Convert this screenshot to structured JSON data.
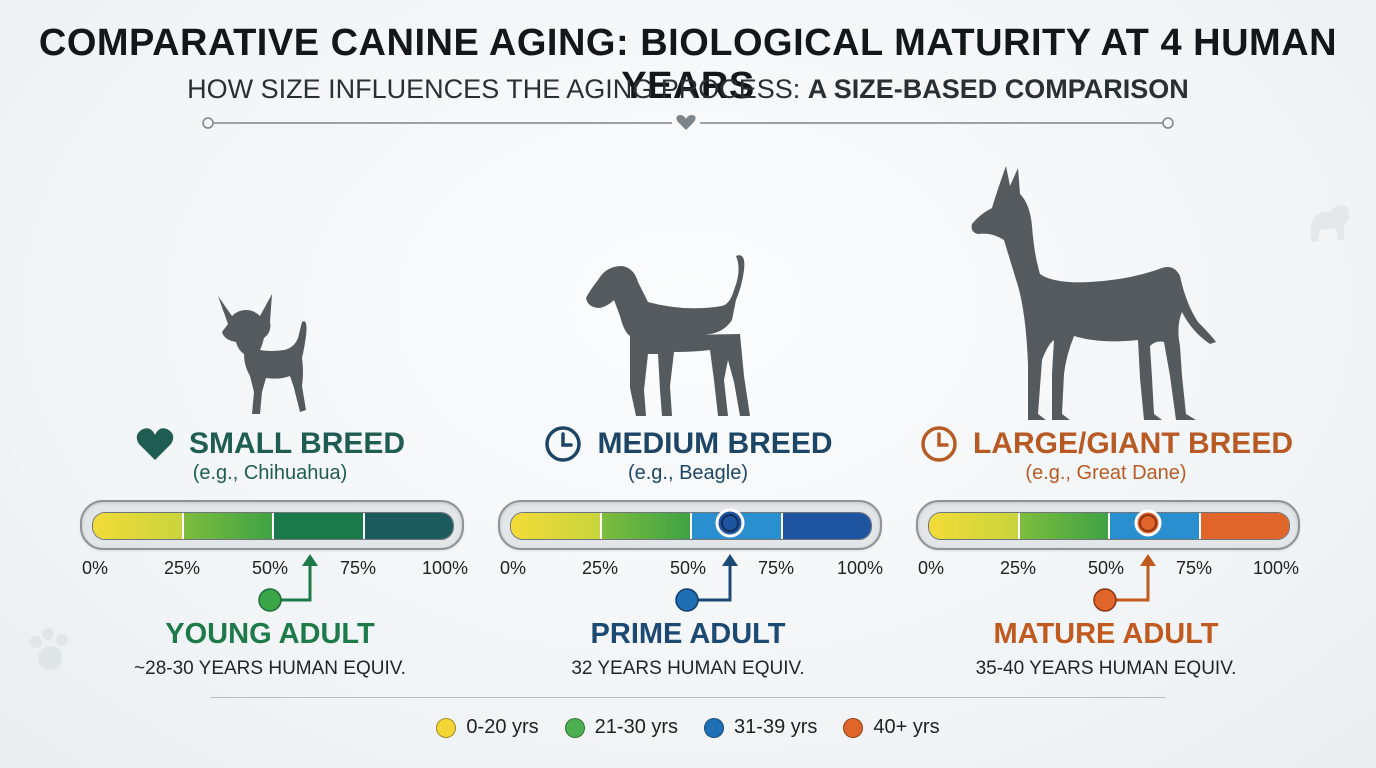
{
  "header": {
    "title": "COMPARATIVE CANINE AGING: BIOLOGICAL MATURITY AT 4 HUMAN YEARS",
    "subtitle_plain": "HOW SIZE INFLUENCES THE AGING PROCESS: ",
    "subtitle_bold": "A SIZE-BASED COMPARISON"
  },
  "tick_labels": [
    "0%",
    "25%",
    "50%",
    "75%",
    "100%"
  ],
  "breeds": [
    {
      "name": "SMALL BREED",
      "example": "(e.g., Chihuahua)",
      "icon": "heart-icon",
      "color": "#1f5c52",
      "segments": [
        "#f2d633",
        "#5fb83f",
        "#1b7a4c",
        "#1d5a5c"
      ],
      "marker_percent": 62,
      "stage": "YOUNG ADULT",
      "equiv": "~28-30 YEARS HUMAN EQUIV.",
      "stage_color": "#1f7a4a",
      "dot_color": "#3aa648"
    },
    {
      "name": "MEDIUM BREED",
      "example": "(e.g., Beagle)",
      "icon": "clock-icon",
      "color": "#1c4566",
      "segments": [
        "#f2d633",
        "#5fb83f",
        "#2a8fcf",
        "#1f55a0"
      ],
      "marker_percent": 63,
      "stage": "PRIME ADULT",
      "equiv": "32 YEARS HUMAN EQUIV.",
      "stage_color": "#1c4a72",
      "dot_color": "#1f6fb5"
    },
    {
      "name": "LARGE/GIANT BREED",
      "example": "(e.g., Great Dane)",
      "icon": "clock-icon",
      "color": "#b85a24",
      "segments": [
        "#f2d633",
        "#5fb83f",
        "#2a8fcf",
        "#e0652a"
      ],
      "marker_percent": 63,
      "stage": "MATURE ADULT",
      "equiv": "35-40 YEARS HUMAN EQUIV.",
      "stage_color": "#c05a1e",
      "dot_color": "#e0652a"
    }
  ],
  "legend": [
    {
      "label": "0-20 yrs",
      "color": "#f2d633"
    },
    {
      "label": "21-30 yrs",
      "color": "#4caf50"
    },
    {
      "label": "31-39 yrs",
      "color": "#1f6fb5"
    },
    {
      "label": "40+ yrs",
      "color": "#e0652a"
    }
  ]
}
